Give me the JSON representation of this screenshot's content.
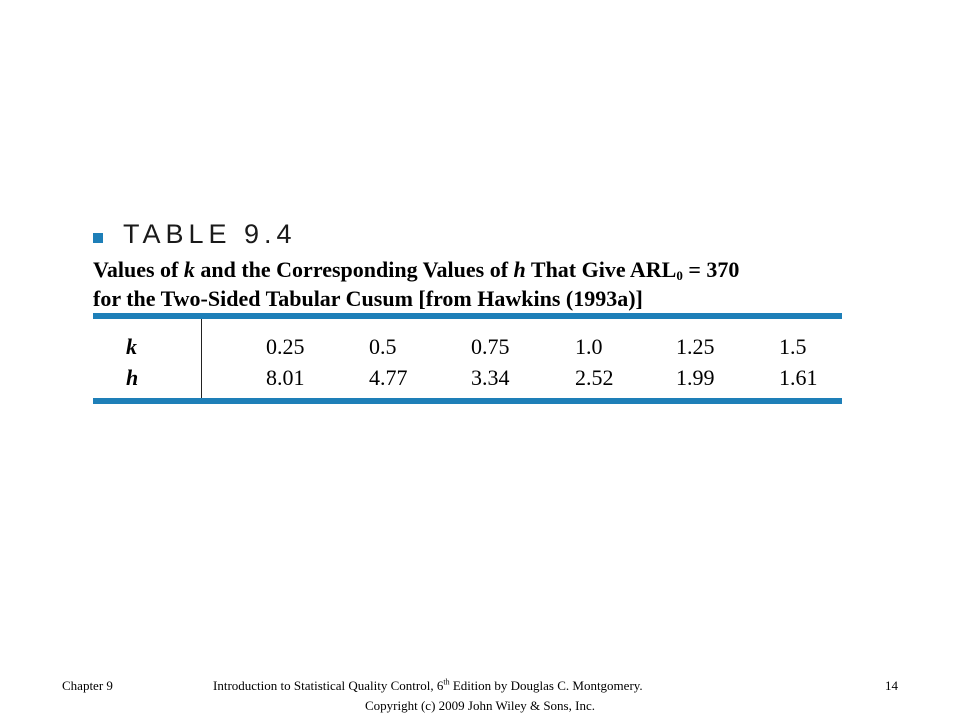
{
  "table": {
    "label": "TABLE 9.4",
    "caption": {
      "t1": "Values of ",
      "var_k": "k",
      "t2": " and the Corresponding Values of ",
      "var_h": "h",
      "t3": " That Give ARL",
      "sub": "0",
      "t4": " = 370",
      "line2": "for the Two-Sided Tabular Cusum [from Hawkins (1993a)]"
    },
    "rows": [
      {
        "label": "k",
        "values": [
          "0.25",
          "0.5",
          "0.75",
          "1.0",
          "1.25",
          "1.5"
        ]
      },
      {
        "label": "h",
        "values": [
          "8.01",
          "4.77",
          "3.34",
          "2.52",
          "1.99",
          "1.61"
        ]
      }
    ]
  },
  "footer": {
    "chapter": "Chapter 9",
    "citation_pre": "Introduction to Statistical Quality Control, 6",
    "citation_sup": "th",
    "citation_post": " Edition by Douglas C. Montgomery.",
    "copyright": "Copyright (c) 2009  John Wiley & Sons, Inc.",
    "page": "14"
  },
  "colors": {
    "accent": "#1e7fb8"
  }
}
